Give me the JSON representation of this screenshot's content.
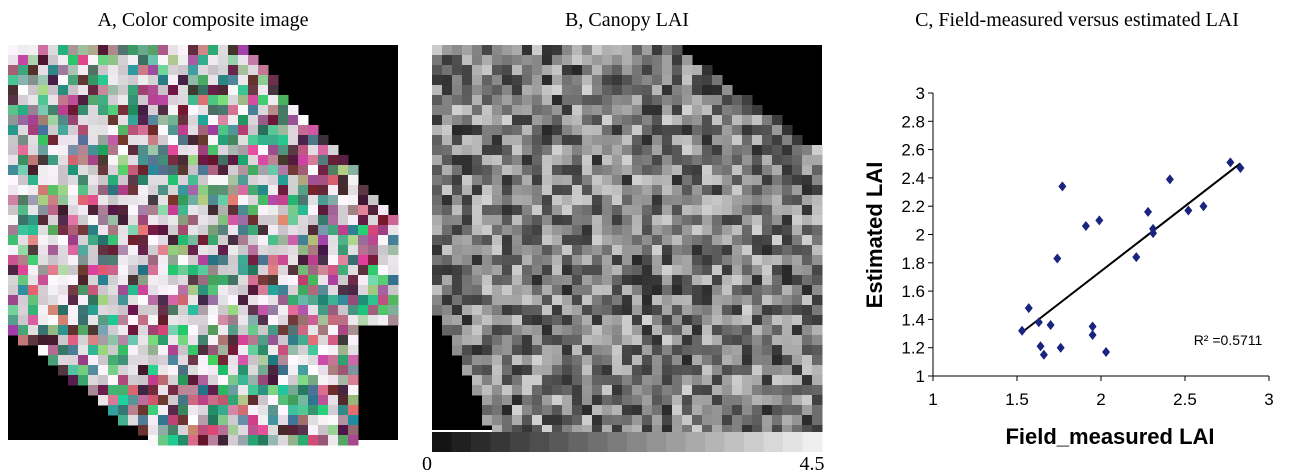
{
  "panels": {
    "a_title": "A, Color composite image",
    "b_title": "B, Canopy LAI",
    "c_title": "C,  Field-measured versus estimated LAI"
  },
  "colorbar": {
    "min": 0,
    "max": 4.5
  },
  "chart_data": {
    "type": "scatter",
    "xlabel": "Field_measured LAI",
    "ylabel": "Estimated LAI",
    "annotation": "R² =0.5711",
    "x": [
      1.53,
      1.57,
      1.63,
      1.64,
      1.66,
      1.7,
      1.74,
      1.76,
      1.77,
      1.91,
      1.99,
      1.95,
      1.95,
      2.03,
      2.21,
      2.28,
      2.31,
      2.31,
      2.41,
      2.52,
      2.61,
      2.77,
      2.83
    ],
    "values": [
      1.32,
      1.48,
      1.38,
      1.21,
      1.15,
      1.36,
      1.83,
      1.2,
      2.34,
      2.06,
      2.1,
      1.35,
      1.29,
      1.17,
      1.84,
      2.16,
      2.04,
      2.01,
      2.39,
      2.17,
      2.2,
      2.51,
      2.47
    ],
    "color": "#1a237e",
    "trendline": true,
    "xlim": [
      1,
      3
    ],
    "ylim": [
      1,
      3
    ],
    "xticks": [
      1,
      1.5,
      2,
      2.5,
      3
    ],
    "yticks": [
      1,
      1.2,
      1.4,
      1.6,
      1.8,
      2,
      2.2,
      2.4,
      2.6,
      2.8,
      3
    ]
  }
}
